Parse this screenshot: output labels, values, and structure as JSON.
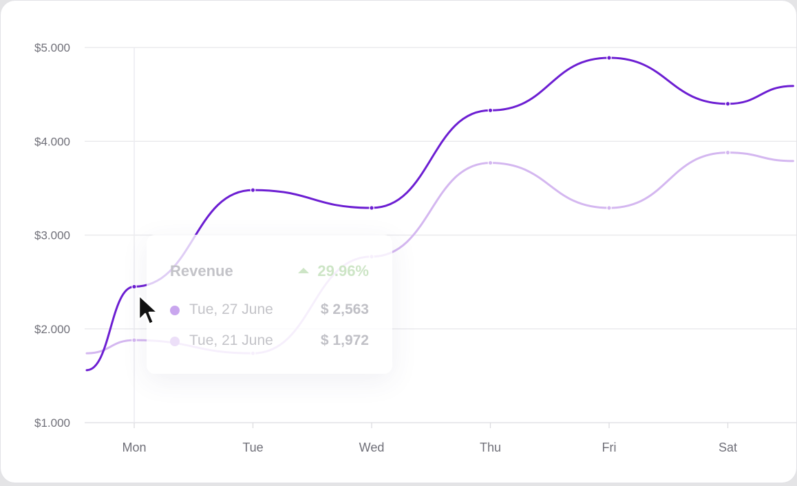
{
  "chart_data": {
    "type": "line",
    "categories": [
      "Mon",
      "Tue",
      "Wed",
      "Thu",
      "Fri",
      "Sat"
    ],
    "y_ticks": [
      "$1.000",
      "$2.000",
      "$3.000",
      "$4.000",
      "$5.000"
    ],
    "ylim": [
      1000,
      5000
    ],
    "grid": true,
    "series": [
      {
        "color": "#6c1ed2",
        "x": [
          -0.4,
          0,
          1,
          2,
          3,
          4,
          5,
          5.55
        ],
        "values": [
          1560,
          2450,
          3480,
          3290,
          4330,
          4890,
          4400,
          4590
        ]
      },
      {
        "color": "#d4b7f0",
        "x": [
          -0.4,
          0,
          1,
          2,
          3,
          4,
          5,
          5.55
        ],
        "values": [
          1740,
          1880,
          1740,
          2770,
          3770,
          3290,
          3880,
          3790
        ]
      }
    ]
  },
  "tooltip": {
    "title": "Revenue",
    "change": "29.96%",
    "change_color": "#cde5c6",
    "rows": [
      {
        "date": "Tue, 27 June",
        "value": "$ 2,563",
        "dot_color": "#c9a6ee"
      },
      {
        "date": "Tue, 21 June",
        "value": "$ 1,972",
        "dot_color": "#ecdff8"
      }
    ]
  }
}
